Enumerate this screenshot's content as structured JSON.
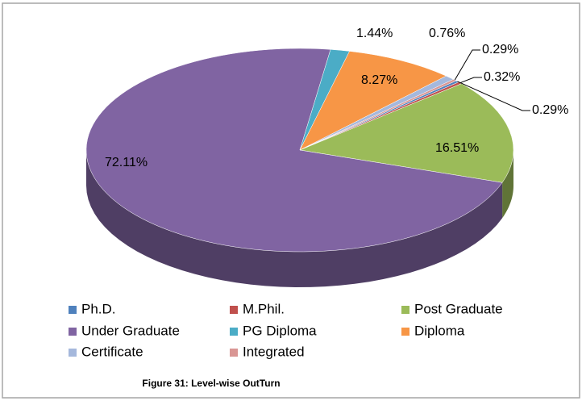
{
  "chart_data": {
    "type": "pie",
    "title": "Figure 31: Level-wise OutTurn",
    "categories": [
      "Ph.D.",
      "M.Phil.",
      "Post Graduate",
      "Under Graduate",
      "PG Diploma",
      "Diploma",
      "Certificate",
      "Integrated"
    ],
    "values": [
      0.29,
      0.32,
      16.51,
      72.11,
      1.44,
      8.27,
      0.76,
      0.29
    ],
    "value_labels": [
      "0.29%",
      "0.32%",
      "16.51%",
      "72.11%",
      "1.44%",
      "8.27%",
      "0.76%",
      "0.29%"
    ],
    "colors": [
      "#4f81bd",
      "#c0504d",
      "#9bbb59",
      "#8064a2",
      "#4bacc6",
      "#f79646",
      "#a5b8dc",
      "#d99694"
    ],
    "legend": "bottom"
  }
}
